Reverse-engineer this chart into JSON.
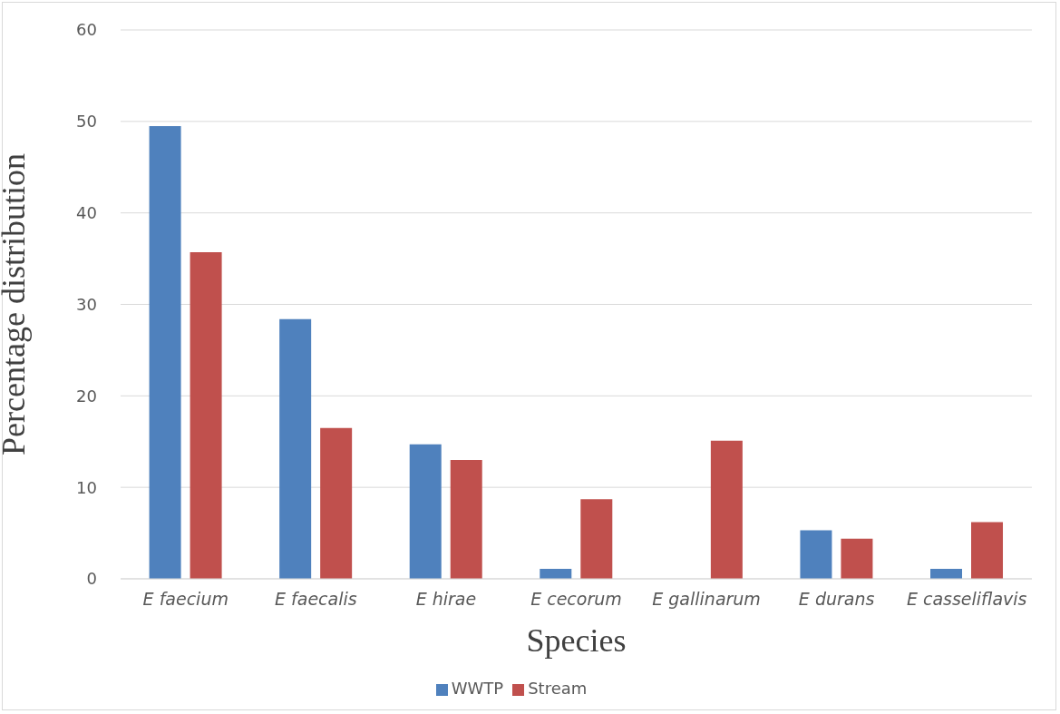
{
  "chart_data": {
    "type": "bar",
    "xlabel": "Species",
    "ylabel": "Percentage distribution",
    "categories": [
      "E faecium",
      "E faecalis",
      "E hirae",
      "E cecorum",
      "E gallinarum",
      "E durans",
      "E casseliflavis"
    ],
    "series": [
      {
        "name": "WWTP",
        "color": "#4f81bd",
        "values": [
          49.5,
          28.4,
          14.7,
          1.1,
          0,
          5.3,
          1.1
        ]
      },
      {
        "name": "Stream",
        "color": "#c0504d",
        "values": [
          35.7,
          16.5,
          13.0,
          8.7,
          15.1,
          4.4,
          6.2
        ]
      }
    ],
    "ylim": [
      0,
      60
    ],
    "yticks": [
      0,
      10,
      20,
      30,
      40,
      50,
      60
    ],
    "grid": "y",
    "legend": "bottom"
  }
}
